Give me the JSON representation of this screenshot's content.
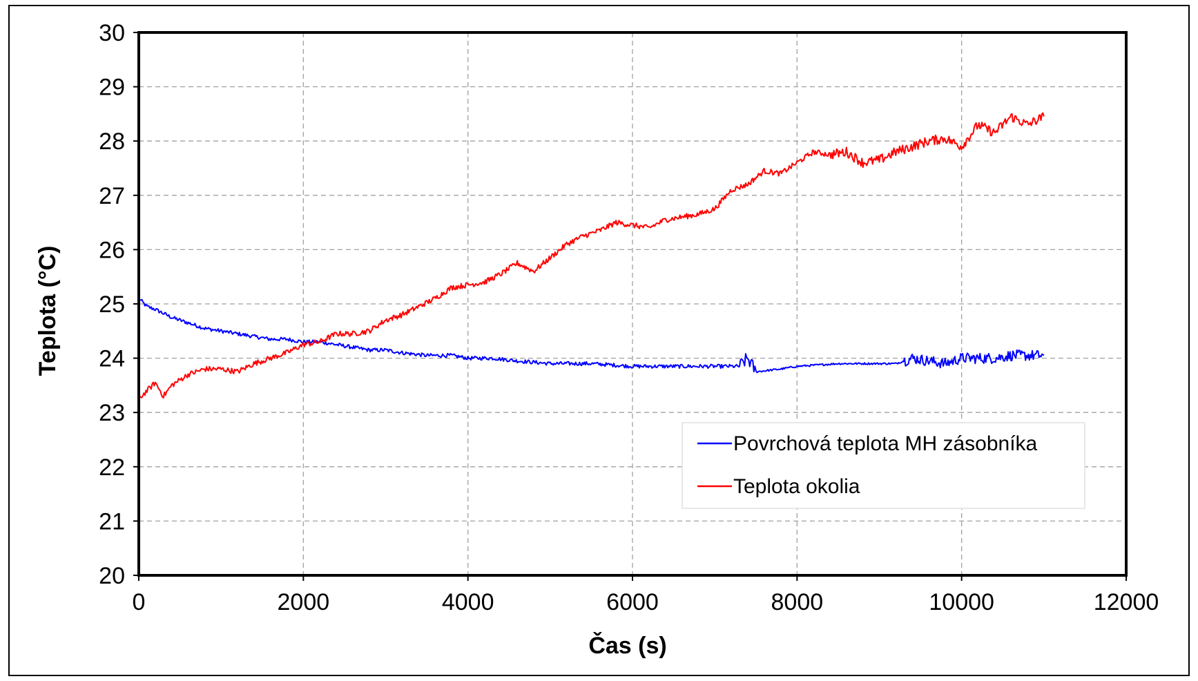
{
  "chart_data": {
    "type": "line",
    "xlabel": "Čas  (s)",
    "ylabel": "Teplota (°C)",
    "xlim": [
      0,
      12000
    ],
    "ylim": [
      20,
      30
    ],
    "xticks": [
      0,
      2000,
      4000,
      6000,
      8000,
      10000,
      12000
    ],
    "yticks": [
      20,
      21,
      22,
      23,
      24,
      25,
      26,
      27,
      28,
      29,
      30
    ],
    "xtick_labels": [
      "0",
      "2000",
      "4000",
      "6000",
      "8000",
      "10000",
      "12000"
    ],
    "ytick_labels": [
      "20",
      "21",
      "22",
      "23",
      "24",
      "25",
      "26",
      "27",
      "28",
      "29",
      "30"
    ],
    "grid": true,
    "legend_position": "lower-right",
    "series": [
      {
        "name": "Povrchová teplota MH zásobníka",
        "color": "#0000ff",
        "x": [
          0,
          100,
          200,
          400,
          600,
          800,
          1000,
          1200,
          1400,
          1600,
          1800,
          2000,
          2200,
          2400,
          2600,
          2800,
          3000,
          3200,
          3500,
          3800,
          4000,
          4300,
          4600,
          5000,
          5500,
          6000,
          6500,
          7000,
          7300,
          7400,
          7500,
          7800,
          8000,
          8500,
          9000,
          9200,
          9400,
          9600,
          9800,
          10000,
          10200,
          10400,
          10600,
          10800,
          11000
        ],
        "y": [
          25.1,
          24.95,
          24.9,
          24.75,
          24.65,
          24.55,
          24.5,
          24.45,
          24.4,
          24.35,
          24.35,
          24.3,
          24.3,
          24.25,
          24.2,
          24.15,
          24.15,
          24.1,
          24.05,
          24.05,
          24.0,
          24.0,
          23.95,
          23.9,
          23.9,
          23.85,
          23.85,
          23.85,
          23.85,
          24.0,
          23.75,
          23.8,
          23.85,
          23.9,
          23.9,
          23.9,
          24.0,
          23.95,
          23.9,
          24.0,
          24.0,
          24.0,
          24.05,
          24.05,
          24.05
        ]
      },
      {
        "name": "Teplota okolia",
        "color": "#ff0000",
        "x": [
          0,
          100,
          200,
          300,
          400,
          600,
          800,
          1000,
          1200,
          1400,
          1600,
          1800,
          2000,
          2200,
          2400,
          2600,
          2800,
          3000,
          3200,
          3400,
          3600,
          3800,
          4000,
          4200,
          4400,
          4600,
          4800,
          5000,
          5200,
          5400,
          5600,
          5800,
          6000,
          6200,
          6400,
          6600,
          6800,
          7000,
          7200,
          7400,
          7600,
          7800,
          8000,
          8200,
          8400,
          8600,
          8800,
          9000,
          9200,
          9400,
          9600,
          9800,
          10000,
          10200,
          10400,
          10600,
          10800,
          11000
        ],
        "y": [
          23.25,
          23.4,
          23.55,
          23.3,
          23.5,
          23.7,
          23.8,
          23.8,
          23.75,
          23.9,
          24.0,
          24.1,
          24.25,
          24.3,
          24.45,
          24.45,
          24.5,
          24.7,
          24.8,
          24.95,
          25.1,
          25.3,
          25.35,
          25.4,
          25.55,
          25.75,
          25.6,
          25.85,
          26.1,
          26.25,
          26.35,
          26.5,
          26.45,
          26.4,
          26.55,
          26.6,
          26.65,
          26.75,
          27.1,
          27.2,
          27.45,
          27.4,
          27.6,
          27.8,
          27.75,
          27.8,
          27.6,
          27.65,
          27.8,
          27.9,
          28.0,
          28.05,
          27.9,
          28.3,
          28.15,
          28.45,
          28.3,
          28.45
        ]
      }
    ]
  }
}
